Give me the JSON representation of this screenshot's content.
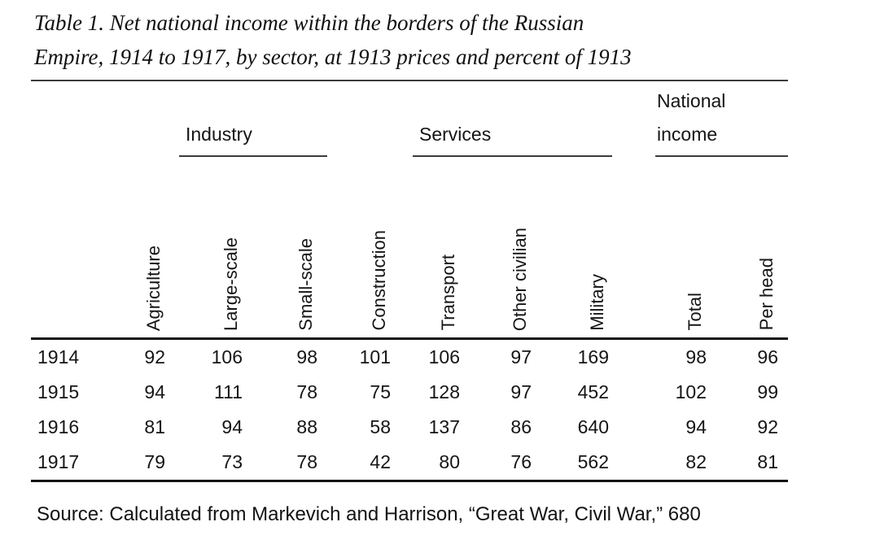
{
  "title": {
    "line1": "Table 1. Net national income within the borders of the Russian",
    "line2": "Empire, 1914 to 1917, by sector, at 1913 prices and percent of 1913"
  },
  "table": {
    "groups": [
      {
        "label": "Industry"
      },
      {
        "label": "Services"
      },
      {
        "label": "National income"
      }
    ],
    "columns": [
      "Agriculture",
      "Large-scale",
      "Small-scale",
      "Construction",
      "Transport",
      "Other civilian",
      "Military",
      "Total",
      "Per head"
    ],
    "rows": [
      {
        "year": "1914",
        "values": [
          "92",
          "106",
          "98",
          "101",
          "106",
          "97",
          "169",
          "98",
          "96"
        ]
      },
      {
        "year": "1915",
        "values": [
          "94",
          "111",
          "78",
          "75",
          "128",
          "97",
          "452",
          "102",
          "99"
        ]
      },
      {
        "year": "1916",
        "values": [
          "81",
          "94",
          "88",
          "58",
          "137",
          "86",
          "640",
          "94",
          "92"
        ]
      },
      {
        "year": "1917",
        "values": [
          "79",
          "73",
          "78",
          "42",
          "80",
          "76",
          "562",
          "82",
          "81"
        ]
      }
    ]
  },
  "source": "Source: Calculated from Markevich and Harrison, “Great War, Civil War,” 680"
}
